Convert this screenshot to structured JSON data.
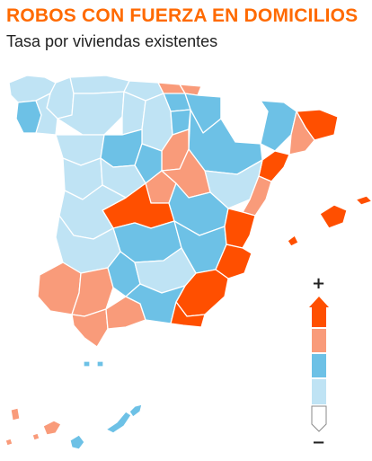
{
  "header": {
    "title": "ROBOS CON FUERZA EN DOMICILIOS",
    "subtitle": "Tasa por viviendas existentes"
  },
  "colors": {
    "title": "#ff6a00",
    "subtitle": "#222222",
    "very_high": "#ff4f00",
    "high": "#f99b7a",
    "medium": "#6dc1e6",
    "low": "#bfe3f4",
    "lowest": "#ffffff",
    "border": "#ffffff",
    "text_dark": "#222222"
  },
  "legend": {
    "plus": "+",
    "minus": "−",
    "levels": [
      "very_high",
      "high",
      "medium",
      "low",
      "lowest"
    ]
  }
}
